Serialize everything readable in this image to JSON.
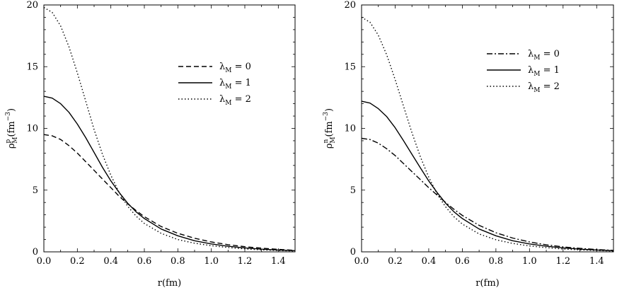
{
  "chart_data": [
    {
      "type": "line",
      "title": "",
      "xlabel": "r(fm)",
      "ylabel": {
        "symbol": "ρ",
        "sup": "p",
        "sub": "M",
        "unit": "(fm",
        "unit_exp": "−3",
        "unit_close": ")"
      },
      "xlim": [
        0,
        1.5
      ],
      "ylim": [
        0,
        20
      ],
      "xticks": [
        0.0,
        0.2,
        0.4,
        0.6,
        0.8,
        1.0,
        1.2,
        1.4
      ],
      "xtick_labels": [
        "0.0",
        "0.2",
        "0.4",
        "0.6",
        "0.8",
        "1.0",
        "1.2",
        "1.4"
      ],
      "yticks": [
        0,
        5,
        10,
        15,
        20
      ],
      "ytick_labels": [
        "0",
        "5",
        "10",
        "15",
        "20"
      ],
      "legend_position": "upper-right",
      "series": [
        {
          "name": "λ_M = 0",
          "label_main": "λ",
          "label_sub": "M",
          "label_rest": " = 0",
          "style": "dashed",
          "x": [
            0,
            0.05,
            0.1,
            0.15,
            0.2,
            0.25,
            0.3,
            0.35,
            0.4,
            0.45,
            0.5,
            0.55,
            0.6,
            0.7,
            0.8,
            0.9,
            1.0,
            1.1,
            1.2,
            1.3,
            1.4,
            1.5
          ],
          "y": [
            9.5,
            9.4,
            9.1,
            8.6,
            8.0,
            7.3,
            6.6,
            5.9,
            5.2,
            4.5,
            3.9,
            3.35,
            2.85,
            2.05,
            1.5,
            1.1,
            0.8,
            0.58,
            0.42,
            0.3,
            0.2,
            0.12
          ]
        },
        {
          "name": "λ_M = 1",
          "label_main": "λ",
          "label_sub": "M",
          "label_rest": " = 1",
          "style": "solid",
          "x": [
            0,
            0.05,
            0.1,
            0.15,
            0.2,
            0.25,
            0.3,
            0.35,
            0.4,
            0.45,
            0.5,
            0.55,
            0.6,
            0.7,
            0.8,
            0.9,
            1.0,
            1.1,
            1.2,
            1.3,
            1.4,
            1.5
          ],
          "y": [
            12.6,
            12.45,
            12.0,
            11.3,
            10.35,
            9.25,
            8.05,
            6.85,
            5.75,
            4.8,
            3.95,
            3.25,
            2.7,
            1.85,
            1.3,
            0.9,
            0.64,
            0.45,
            0.32,
            0.22,
            0.15,
            0.1
          ]
        },
        {
          "name": "λ_M = 2",
          "label_main": "λ",
          "label_sub": "M",
          "label_rest": " = 2",
          "style": "dotted",
          "x": [
            0,
            0.05,
            0.1,
            0.15,
            0.2,
            0.25,
            0.3,
            0.35,
            0.4,
            0.45,
            0.5,
            0.55,
            0.6,
            0.7,
            0.8,
            0.9,
            1.0,
            1.1,
            1.2,
            1.3,
            1.4,
            1.5
          ],
          "y": [
            19.8,
            19.4,
            18.3,
            16.6,
            14.5,
            12.2,
            9.9,
            7.9,
            6.2,
            4.8,
            3.7,
            2.9,
            2.3,
            1.5,
            1.0,
            0.7,
            0.5,
            0.35,
            0.24,
            0.16,
            0.11,
            0.07
          ]
        }
      ]
    },
    {
      "type": "line",
      "title": "",
      "xlabel": "r(fm)",
      "ylabel": {
        "symbol": "ρ",
        "sup": "n",
        "sub": "M",
        "unit": "(fm",
        "unit_exp": "−3",
        "unit_close": ")"
      },
      "xlim": [
        0,
        1.5
      ],
      "ylim": [
        0,
        20
      ],
      "xticks": [
        0.0,
        0.2,
        0.4,
        0.6,
        0.8,
        1.0,
        1.2,
        1.4
      ],
      "xtick_labels": [
        "0.0",
        "0.2",
        "0.4",
        "0.6",
        "0.8",
        "1.0",
        "1.2",
        "1.4"
      ],
      "yticks": [
        0,
        5,
        10,
        15,
        20
      ],
      "ytick_labels": [
        "0",
        "5",
        "10",
        "15",
        "20"
      ],
      "legend_position": "upper-right",
      "series": [
        {
          "name": "λ_M = 0",
          "label_main": "λ",
          "label_sub": "M",
          "label_rest": " = 0",
          "style": "dashdot",
          "x": [
            0,
            0.05,
            0.1,
            0.15,
            0.2,
            0.25,
            0.3,
            0.35,
            0.4,
            0.45,
            0.5,
            0.55,
            0.6,
            0.7,
            0.8,
            0.9,
            1.0,
            1.1,
            1.2,
            1.3,
            1.4,
            1.5
          ],
          "y": [
            9.2,
            9.1,
            8.8,
            8.35,
            7.8,
            7.15,
            6.5,
            5.85,
            5.2,
            4.6,
            4.0,
            3.45,
            2.95,
            2.15,
            1.55,
            1.12,
            0.8,
            0.57,
            0.4,
            0.28,
            0.19,
            0.12
          ]
        },
        {
          "name": "λ_M = 1",
          "label_main": "λ",
          "label_sub": "M",
          "label_rest": " = 1",
          "style": "solid",
          "x": [
            0,
            0.05,
            0.1,
            0.15,
            0.2,
            0.25,
            0.3,
            0.35,
            0.4,
            0.45,
            0.5,
            0.55,
            0.6,
            0.7,
            0.8,
            0.9,
            1.0,
            1.1,
            1.2,
            1.3,
            1.4,
            1.5
          ],
          "y": [
            12.2,
            12.05,
            11.6,
            10.95,
            10.05,
            9.0,
            7.9,
            6.8,
            5.75,
            4.8,
            3.95,
            3.25,
            2.7,
            1.85,
            1.3,
            0.9,
            0.64,
            0.45,
            0.32,
            0.22,
            0.15,
            0.1
          ]
        },
        {
          "name": "λ_M = 2",
          "label_main": "λ",
          "label_sub": "M",
          "label_rest": " = 2",
          "style": "dotted",
          "x": [
            0,
            0.05,
            0.1,
            0.15,
            0.2,
            0.25,
            0.3,
            0.35,
            0.4,
            0.45,
            0.5,
            0.55,
            0.6,
            0.7,
            0.8,
            0.9,
            1.0,
            1.1,
            1.2,
            1.3,
            1.4,
            1.5
          ],
          "y": [
            19.0,
            18.6,
            17.55,
            15.95,
            13.95,
            11.8,
            9.65,
            7.7,
            6.05,
            4.7,
            3.65,
            2.85,
            2.25,
            1.45,
            0.98,
            0.68,
            0.48,
            0.34,
            0.23,
            0.16,
            0.11,
            0.07
          ]
        }
      ]
    }
  ]
}
